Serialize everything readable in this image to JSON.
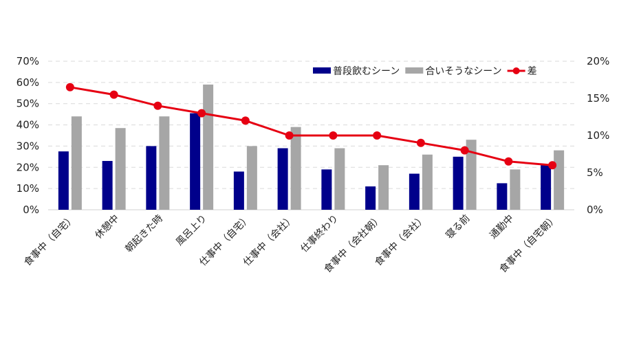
{
  "chart_data": {
    "type": "bar",
    "title": "",
    "xlabel": "",
    "ylabel": "",
    "categories": [
      "食事中（自宅）",
      "休憩中",
      "朝起きた時",
      "風呂上り",
      "仕事中（自宅）",
      "仕事中（会社）",
      "仕事終わり",
      "食事中（会社朝）",
      "食事中（会社）",
      "寝る前",
      "通勤中",
      "食事中（自宅朝）"
    ],
    "series": [
      {
        "name": "普段飲むシーン",
        "type": "bar",
        "axis": "left",
        "color": "#00008b",
        "values": [
          27.5,
          23,
          30,
          45.5,
          18,
          29,
          19,
          11,
          17,
          25,
          12.5,
          21
        ]
      },
      {
        "name": "合いそうなシーン",
        "type": "bar",
        "axis": "left",
        "color": "#a6a6a6",
        "values": [
          44,
          38.5,
          44,
          59,
          30,
          39,
          29,
          21,
          26,
          33,
          19,
          28
        ]
      },
      {
        "name": "差",
        "type": "line",
        "axis": "right",
        "color": "#e60012",
        "values": [
          16.5,
          15.5,
          14,
          13,
          12,
          10,
          10,
          10,
          9,
          8,
          6.5,
          6
        ]
      }
    ],
    "ylim": [
      0,
      70
    ],
    "y2lim": [
      0,
      20
    ],
    "yticks": [
      "0%",
      "10%",
      "20%",
      "30%",
      "40%",
      "50%",
      "60%",
      "70%"
    ],
    "y2ticks": [
      "0%",
      "5%",
      "10%",
      "15%",
      "20%"
    ],
    "grid": "dashed horizontal",
    "legend_position": "top-right"
  }
}
